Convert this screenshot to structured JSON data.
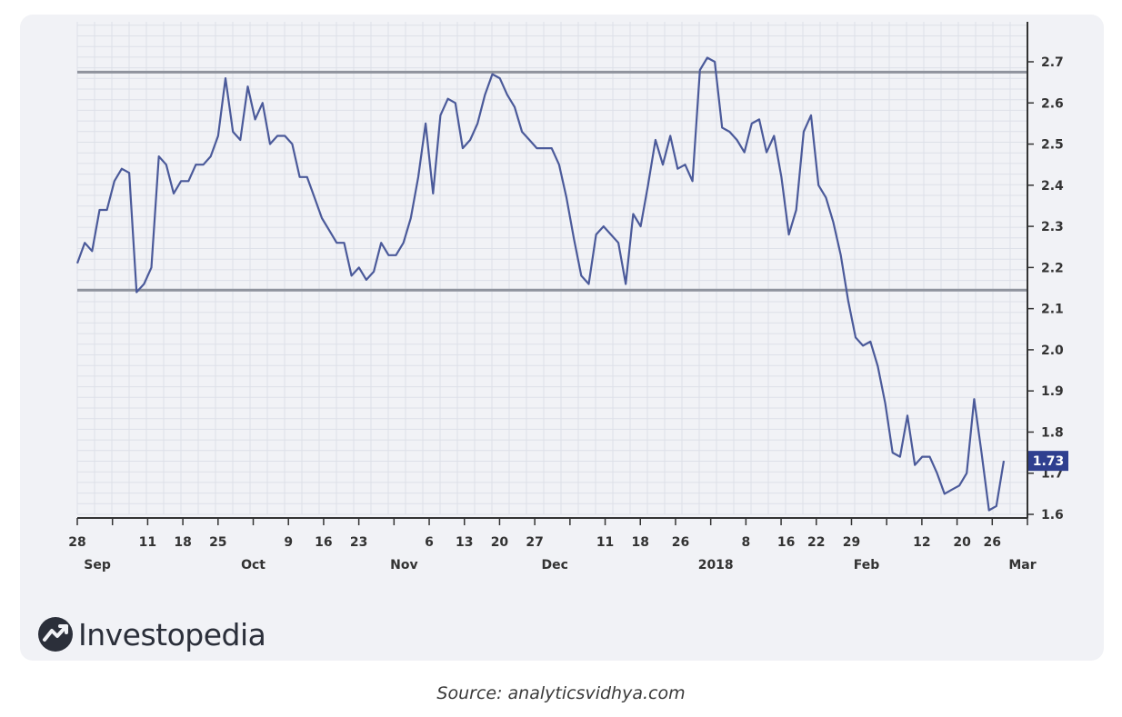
{
  "chart_data": {
    "type": "line",
    "title": "",
    "xlabel": "",
    "ylabel": "",
    "ylim": [
      1.6,
      2.7
    ],
    "yticks": [
      1.6,
      1.7,
      1.8,
      1.9,
      2.0,
      2.1,
      2.2,
      2.3,
      2.4,
      2.5,
      2.6,
      2.7
    ],
    "ytick_labels": [
      "1.6",
      "1.7",
      "1.8",
      "1.9",
      "2.0",
      "2.1",
      "2.2",
      "2.3",
      "2.4",
      "2.5",
      "2.6",
      "2.7"
    ],
    "x_start": "2017-08-28",
    "x_end": "2018-03-05",
    "grid": true,
    "xticks": [
      {
        "date": "2017-08-28",
        "day": "28",
        "month": "Sep"
      },
      {
        "date": "2017-09-11",
        "day": "11",
        "month": ""
      },
      {
        "date": "2017-09-18",
        "day": "18",
        "month": ""
      },
      {
        "date": "2017-09-25",
        "day": "25",
        "month": ""
      },
      {
        "date": "2017-10-09",
        "day": "9",
        "month": "Oct"
      },
      {
        "date": "2017-10-16",
        "day": "16",
        "month": ""
      },
      {
        "date": "2017-10-23",
        "day": "23",
        "month": ""
      },
      {
        "date": "2017-11-06",
        "day": "6",
        "month": "Nov"
      },
      {
        "date": "2017-11-13",
        "day": "13",
        "month": ""
      },
      {
        "date": "2017-11-20",
        "day": "20",
        "month": ""
      },
      {
        "date": "2017-11-27",
        "day": "27",
        "month": "Dec"
      },
      {
        "date": "2017-12-11",
        "day": "11",
        "month": ""
      },
      {
        "date": "2017-12-18",
        "day": "18",
        "month": ""
      },
      {
        "date": "2017-12-26",
        "day": "26",
        "month": ""
      },
      {
        "date": "2018-01-08",
        "day": "8",
        "month": "2018"
      },
      {
        "date": "2018-01-16",
        "day": "16",
        "month": ""
      },
      {
        "date": "2018-01-22",
        "day": "22",
        "month": ""
      },
      {
        "date": "2018-01-29",
        "day": "29",
        "month": "Feb"
      },
      {
        "date": "2018-02-12",
        "day": "12",
        "month": ""
      },
      {
        "date": "2018-02-20",
        "day": "20",
        "month": ""
      },
      {
        "date": "2018-02-26",
        "day": "26",
        "month": "Mar"
      }
    ],
    "month_label_dates": {
      "Sep": "2017-09-01",
      "Oct": "2017-10-02",
      "Nov": "2017-11-01",
      "Dec": "2017-12-01",
      "2018": "2018-01-02",
      "Feb": "2018-02-01",
      "Mar": "2018-03-04"
    },
    "series": [
      {
        "color": "#4b5a9a",
        "points": [
          [
            "2017-08-28",
            2.21
          ],
          [
            "2017-08-30",
            2.26
          ],
          [
            "2017-09-01",
            2.24
          ],
          [
            "2017-09-04",
            2.34
          ],
          [
            "2017-09-06",
            2.34
          ],
          [
            "2017-09-08",
            2.41
          ],
          [
            "2017-09-10",
            2.44
          ],
          [
            "2017-09-11",
            2.43
          ],
          [
            "2017-09-13",
            2.14
          ],
          [
            "2017-09-15",
            2.16
          ],
          [
            "2017-09-17",
            2.2
          ],
          [
            "2017-09-19",
            2.47
          ],
          [
            "2017-09-21",
            2.45
          ],
          [
            "2017-09-23",
            2.38
          ],
          [
            "2017-09-25",
            2.41
          ],
          [
            "2017-09-27",
            2.41
          ],
          [
            "2017-09-29",
            2.45
          ],
          [
            "2017-10-01",
            2.45
          ],
          [
            "2017-10-03",
            2.47
          ],
          [
            "2017-10-05",
            2.52
          ],
          [
            "2017-10-08",
            2.66
          ],
          [
            "2017-10-11",
            2.53
          ],
          [
            "2017-10-13",
            2.51
          ],
          [
            "2017-10-16",
            2.64
          ],
          [
            "2017-10-18",
            2.56
          ],
          [
            "2017-10-20",
            2.6
          ],
          [
            "2017-10-22",
            2.5
          ],
          [
            "2017-10-24",
            2.52
          ],
          [
            "2017-10-26",
            2.52
          ],
          [
            "2017-10-28",
            2.5
          ],
          [
            "2017-10-30",
            2.42
          ],
          [
            "2017-11-01",
            2.42
          ],
          [
            "2017-11-03",
            2.37
          ],
          [
            "2017-11-06",
            2.32
          ],
          [
            "2017-11-08",
            2.29
          ],
          [
            "2017-11-10",
            2.26
          ],
          [
            "2017-11-12",
            2.26
          ],
          [
            "2017-11-14",
            2.18
          ],
          [
            "2017-11-16",
            2.2
          ],
          [
            "2017-11-18",
            2.17
          ],
          [
            "2017-11-20",
            2.19
          ],
          [
            "2017-11-22",
            2.26
          ],
          [
            "2017-11-24",
            2.23
          ],
          [
            "2017-11-26",
            2.23
          ],
          [
            "2017-11-28",
            2.26
          ],
          [
            "2017-11-30",
            2.32
          ],
          [
            "2017-12-02",
            2.42
          ],
          [
            "2017-12-05",
            2.55
          ],
          [
            "2017-12-08",
            2.38
          ],
          [
            "2017-12-10",
            2.57
          ],
          [
            "2017-12-12",
            2.61
          ],
          [
            "2017-12-14",
            2.6
          ],
          [
            "2017-12-16",
            2.49
          ],
          [
            "2017-12-18",
            2.51
          ],
          [
            "2017-12-20",
            2.55
          ],
          [
            "2017-12-22",
            2.62
          ],
          [
            "2017-12-24",
            2.67
          ],
          [
            "2017-12-26",
            2.66
          ],
          [
            "2017-12-28",
            2.62
          ],
          [
            "2017-12-30",
            2.59
          ],
          [
            "2018-01-01",
            2.53
          ],
          [
            "2018-01-03",
            2.51
          ],
          [
            "2018-01-05",
            2.49
          ],
          [
            "2018-01-07",
            2.49
          ],
          [
            "2018-01-09",
            2.49
          ],
          [
            "2018-01-11",
            2.45
          ],
          [
            "2018-01-13",
            2.37
          ],
          [
            "2018-01-15",
            2.27
          ],
          [
            "2018-01-17",
            2.18
          ],
          [
            "2018-01-19",
            2.16
          ],
          [
            "2018-01-21",
            2.28
          ],
          [
            "2018-01-23",
            2.3
          ],
          [
            "2018-01-25",
            2.28
          ],
          [
            "2018-01-27",
            2.26
          ],
          [
            "2018-01-29",
            2.16
          ],
          [
            "2018-01-31",
            2.33
          ],
          [
            "2018-02-02",
            2.3
          ],
          [
            "2018-02-04",
            2.4
          ],
          [
            "2018-02-06",
            2.51
          ],
          [
            "2018-02-08",
            2.45
          ],
          [
            "2018-02-10",
            2.52
          ],
          [
            "2018-02-12",
            2.44
          ],
          [
            "2018-02-14",
            2.45
          ],
          [
            "2018-02-16",
            2.41
          ],
          [
            "2018-02-18",
            2.68
          ],
          [
            "2018-02-20",
            2.71
          ],
          [
            "2018-02-22",
            2.7
          ],
          [
            "2018-02-24",
            2.54
          ],
          [
            "2018-02-26",
            2.53
          ],
          [
            "2018-02-28",
            2.51
          ],
          [
            "2018-03-02",
            2.48
          ],
          [
            "2018-03-04",
            2.55
          ],
          [
            "2018-03-06",
            2.56
          ],
          [
            "2018-03-08",
            2.48
          ],
          [
            "2018-03-10",
            2.52
          ],
          [
            "2018-03-12",
            2.42
          ],
          [
            "2018-03-14",
            2.28
          ],
          [
            "2018-03-16",
            2.34
          ],
          [
            "2018-03-18",
            2.53
          ],
          [
            "2018-03-20",
            2.57
          ],
          [
            "2018-03-22",
            2.4
          ],
          [
            "2018-03-24",
            2.37
          ],
          [
            "2018-03-26",
            2.31
          ],
          [
            "2018-03-28",
            2.23
          ],
          [
            "2018-03-30",
            2.12
          ],
          [
            "2018-04-01",
            2.03
          ],
          [
            "2018-04-03",
            2.01
          ],
          [
            "2018-04-05",
            2.02
          ],
          [
            "2018-04-07",
            1.96
          ],
          [
            "2018-04-09",
            1.87
          ],
          [
            "2018-04-11",
            1.75
          ],
          [
            "2018-04-13",
            1.74
          ],
          [
            "2018-04-15",
            1.84
          ],
          [
            "2018-04-17",
            1.72
          ],
          [
            "2018-04-19",
            1.74
          ],
          [
            "2018-04-21",
            1.74
          ],
          [
            "2018-04-23",
            1.7
          ],
          [
            "2018-04-25",
            1.65
          ],
          [
            "2018-04-27",
            1.66
          ],
          [
            "2018-04-29",
            1.67
          ],
          [
            "2018-05-01",
            1.7
          ],
          [
            "2018-05-03",
            1.88
          ],
          [
            "2018-05-05",
            1.75
          ],
          [
            "2018-05-07",
            1.61
          ],
          [
            "2018-05-09",
            1.62
          ],
          [
            "2018-05-11",
            1.73
          ]
        ]
      }
    ],
    "horizontal_lines": [
      {
        "y": 2.675,
        "color": "#8f939d"
      },
      {
        "y": 2.145,
        "color": "#8f939d"
      }
    ],
    "last_value_badge": {
      "label": "1.73",
      "value": 1.73,
      "color": "#2f3f8f"
    }
  },
  "brand": {
    "name": "Investopedia",
    "logo_icon": "investopedia-logo-icon"
  },
  "caption": "Source: analyticsvidhya.com"
}
